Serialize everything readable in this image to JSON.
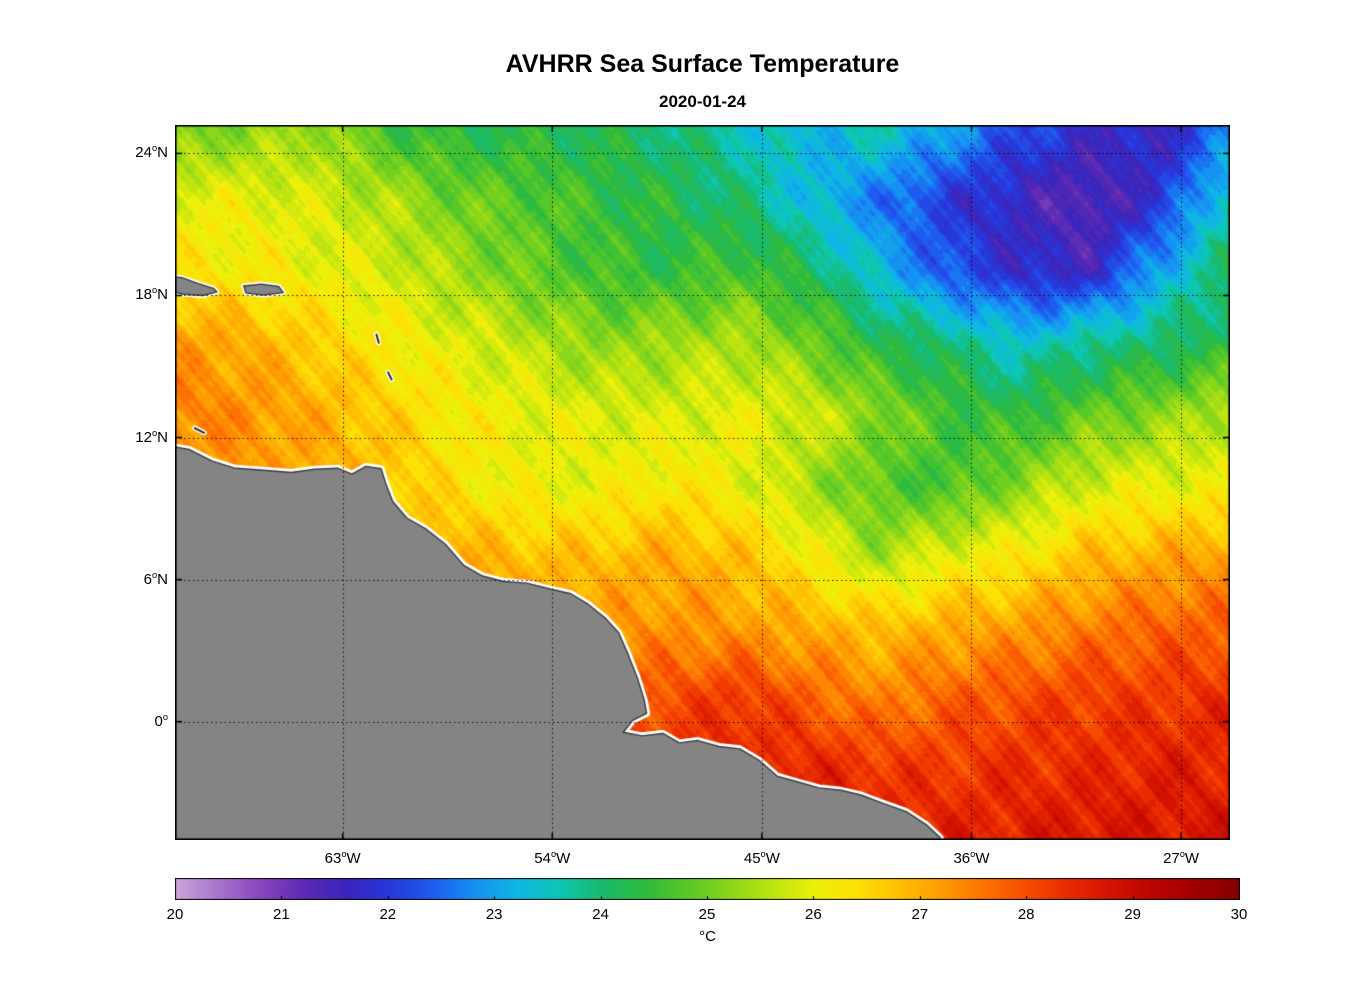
{
  "figure": {
    "title": "AVHRR Sea Surface Temperature",
    "subtitle": "2020-01-24",
    "colorbar_unit": "°C"
  },
  "chart_data": {
    "type": "heatmap",
    "title": "AVHRR Sea Surface Temperature",
    "subtitle": "2020-01-24",
    "xlabel": "longitude",
    "ylabel": "latitude",
    "lon_range": [
      -70.2,
      -24.9
    ],
    "lat_range": [
      -5.0,
      25.2
    ],
    "grid_on": true,
    "xticks": [
      {
        "lon": -63,
        "label": "63°W"
      },
      {
        "lon": -54,
        "label": "54°W"
      },
      {
        "lon": -45,
        "label": "45°W"
      },
      {
        "lon": -36,
        "label": "36°W"
      },
      {
        "lon": -27,
        "label": "27°W"
      }
    ],
    "yticks": [
      {
        "lat": 24,
        "label": "24°N"
      },
      {
        "lat": 18,
        "label": "18°N"
      },
      {
        "lat": 12,
        "label": "12°N"
      },
      {
        "lat": 6,
        "label": "6°N"
      },
      {
        "lat": 0,
        "label": "0°"
      }
    ],
    "colorbar": {
      "min": 20,
      "max": 30,
      "ticks": [
        20,
        21,
        22,
        23,
        24,
        25,
        26,
        27,
        28,
        29,
        30
      ],
      "unit": "°C",
      "position": "bottom"
    },
    "colormap_stops": [
      [
        20.0,
        "#cba6d9"
      ],
      [
        20.4,
        "#a875cc"
      ],
      [
        20.8,
        "#8a46be"
      ],
      [
        21.2,
        "#5e2bb4"
      ],
      [
        21.6,
        "#3c25bb"
      ],
      [
        22.0,
        "#2837da"
      ],
      [
        22.4,
        "#1f5bef"
      ],
      [
        22.8,
        "#1690f2"
      ],
      [
        23.2,
        "#0fb5e5"
      ],
      [
        23.6,
        "#0dc6b4"
      ],
      [
        24.0,
        "#19ba6e"
      ],
      [
        24.4,
        "#2eba40"
      ],
      [
        24.8,
        "#57c827"
      ],
      [
        25.2,
        "#8ad61b"
      ],
      [
        25.6,
        "#bce411"
      ],
      [
        26.0,
        "#ecf00a"
      ],
      [
        26.4,
        "#fde106"
      ],
      [
        26.8,
        "#ffc004"
      ],
      [
        27.2,
        "#ff9c02"
      ],
      [
        27.6,
        "#fd7301"
      ],
      [
        28.0,
        "#f64c01"
      ],
      [
        28.4,
        "#e92b00"
      ],
      [
        28.8,
        "#d31300"
      ],
      [
        29.2,
        "#ba0500"
      ],
      [
        29.6,
        "#9e0000"
      ],
      [
        30.0,
        "#860000"
      ]
    ],
    "land_color": "#848484",
    "coast_halo_color": "#ffffff",
    "coast_line_color": "#3c3c3c",
    "grid": {
      "lats": [
        25,
        22,
        19,
        16,
        13,
        10,
        7,
        4,
        1,
        -2,
        -5
      ],
      "lons": [
        -70,
        -67,
        -64,
        -61,
        -58,
        -55,
        -52,
        -49,
        -46,
        -43,
        -40,
        -37,
        -34,
        -31,
        -28,
        -25
      ],
      "sst_c": [
        [
          25.0,
          25.2,
          25.4,
          24.6,
          24.3,
          24.3,
          24.2,
          24.0,
          23.6,
          23.2,
          23.6,
          23.0,
          22.2,
          21.8,
          21.6,
          22.6
        ],
        [
          26.0,
          26.0,
          25.8,
          25.5,
          25.0,
          24.8,
          24.5,
          24.3,
          24.0,
          23.3,
          22.6,
          22.0,
          21.6,
          21.2,
          21.9,
          23.6
        ],
        [
          26.3,
          26.2,
          26.0,
          25.8,
          25.4,
          24.9,
          24.6,
          24.4,
          24.7,
          24.2,
          23.3,
          22.3,
          21.8,
          21.6,
          23.0,
          24.1
        ],
        [
          27.2,
          27.0,
          26.6,
          26.2,
          25.9,
          25.6,
          25.2,
          25.4,
          25.5,
          25.0,
          24.3,
          24.0,
          23.4,
          23.8,
          24.0,
          24.3
        ],
        [
          27.5,
          27.3,
          27.0,
          26.6,
          26.2,
          26.0,
          25.9,
          25.8,
          26.0,
          25.8,
          25.2,
          24.6,
          24.4,
          24.9,
          25.2,
          25.6
        ],
        [
          27.2,
          27.2,
          27.0,
          26.8,
          26.3,
          26.0,
          26.0,
          26.3,
          26.0,
          25.4,
          24.8,
          24.6,
          25.2,
          25.8,
          26.0,
          26.0
        ],
        [
          27.4,
          27.4,
          27.3,
          27.1,
          27.0,
          26.8,
          26.8,
          27.0,
          26.8,
          26.2,
          25.4,
          26.0,
          26.2,
          26.8,
          27.0,
          27.2
        ],
        [
          27.6,
          27.6,
          27.5,
          27.4,
          27.3,
          27.3,
          27.2,
          27.3,
          27.2,
          27.0,
          26.8,
          27.0,
          27.2,
          27.5,
          27.8,
          27.8
        ],
        [
          27.8,
          27.8,
          27.8,
          27.8,
          27.7,
          27.7,
          27.7,
          28.0,
          28.3,
          27.8,
          27.4,
          27.8,
          28.0,
          28.2,
          28.2,
          28.4
        ],
        [
          28.0,
          28.0,
          28.0,
          28.0,
          28.0,
          28.1,
          28.2,
          28.3,
          28.5,
          28.5,
          28.3,
          28.2,
          28.4,
          28.4,
          28.6,
          28.5
        ],
        [
          28.2,
          28.2,
          28.2,
          28.2,
          28.2,
          28.3,
          28.4,
          28.5,
          28.6,
          28.6,
          28.6,
          28.6,
          28.6,
          28.8,
          28.7,
          28.8
        ]
      ]
    },
    "coastline": [
      [
        -70.8,
        11.7
      ],
      [
        -69.6,
        11.5
      ],
      [
        -68.6,
        11.0
      ],
      [
        -67.6,
        10.7
      ],
      [
        -66.4,
        10.62
      ],
      [
        -65.2,
        10.52
      ],
      [
        -64.2,
        10.66
      ],
      [
        -63.2,
        10.7
      ],
      [
        -62.6,
        10.45
      ],
      [
        -62.0,
        10.78
      ],
      [
        -61.35,
        10.68
      ],
      [
        -61.15,
        10.05
      ],
      [
        -60.85,
        9.3
      ],
      [
        -60.25,
        8.6
      ],
      [
        -59.45,
        8.15
      ],
      [
        -58.6,
        7.5
      ],
      [
        -57.8,
        6.6
      ],
      [
        -57.0,
        6.15
      ],
      [
        -56.1,
        5.92
      ],
      [
        -55.1,
        5.85
      ],
      [
        -54.1,
        5.6
      ],
      [
        -53.2,
        5.4
      ],
      [
        -52.45,
        4.95
      ],
      [
        -51.7,
        4.35
      ],
      [
        -51.15,
        3.75
      ],
      [
        -50.75,
        2.85
      ],
      [
        -50.35,
        1.85
      ],
      [
        -50.05,
        0.9
      ],
      [
        -49.95,
        0.35
      ],
      [
        -50.55,
        0.05
      ],
      [
        -50.95,
        -0.45
      ],
      [
        -50.15,
        -0.6
      ],
      [
        -49.25,
        -0.5
      ],
      [
        -48.55,
        -0.9
      ],
      [
        -47.75,
        -0.8
      ],
      [
        -46.85,
        -1.05
      ],
      [
        -45.95,
        -1.15
      ],
      [
        -45.1,
        -1.65
      ],
      [
        -44.35,
        -2.3
      ],
      [
        -43.45,
        -2.55
      ],
      [
        -42.55,
        -2.8
      ],
      [
        -41.6,
        -2.9
      ],
      [
        -40.75,
        -3.1
      ],
      [
        -39.8,
        -3.45
      ],
      [
        -38.8,
        -3.8
      ],
      [
        -37.95,
        -4.35
      ],
      [
        -37.35,
        -4.9
      ],
      [
        -37.05,
        -5.9
      ],
      [
        -70.8,
        -5.9
      ]
    ],
    "islands": {
      "hispaniola_tip": [
        [
          -70.8,
          18.85
        ],
        [
          -69.9,
          18.75
        ],
        [
          -69.2,
          18.5
        ],
        [
          -68.55,
          18.3
        ],
        [
          -68.4,
          18.15
        ],
        [
          -69.0,
          18.0
        ],
        [
          -69.8,
          18.05
        ],
        [
          -70.8,
          18.25
        ]
      ],
      "puerto_rico": [
        [
          -67.25,
          18.4
        ],
        [
          -66.5,
          18.48
        ],
        [
          -65.75,
          18.38
        ],
        [
          -65.55,
          18.12
        ],
        [
          -66.4,
          18.02
        ],
        [
          -67.15,
          18.1
        ]
      ],
      "small_islands": [
        {
          "name": "guadeloupe",
          "pts": [
            [
              -61.55,
              16.35
            ],
            [
              -61.45,
              16.0
            ]
          ]
        },
        {
          "name": "martinique",
          "pts": [
            [
              -61.05,
              14.75
            ],
            [
              -60.9,
              14.45
            ]
          ]
        },
        {
          "name": "curacao",
          "pts": [
            [
              -69.35,
              12.4
            ],
            [
              -68.95,
              12.2
            ]
          ]
        }
      ]
    }
  }
}
